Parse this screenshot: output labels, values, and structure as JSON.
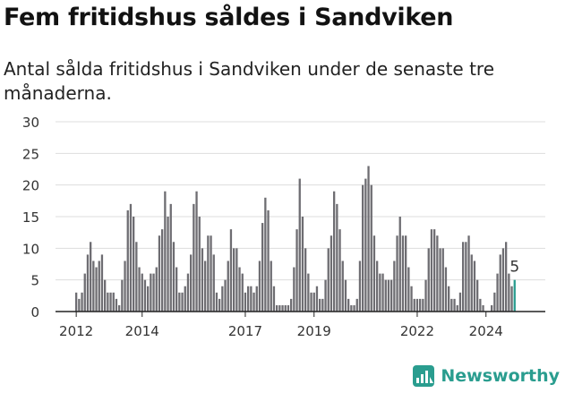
{
  "title": "Fem fritidshus såldes i Sandviken",
  "subtitle": "Antal sålda fritidshus i Sandviken under de senaste tre månaderna.",
  "brand": {
    "name": "Newsworthy",
    "color": "#2a9d8f"
  },
  "colors": {
    "bar": "#6e6d72",
    "highlight": "#2a9d8f",
    "grid": "#dddddd"
  },
  "chart_data": {
    "type": "bar",
    "title": "",
    "xlabel": "",
    "ylabel": "",
    "ylim": [
      0,
      30
    ],
    "grid": true,
    "y_ticks": [
      0,
      5,
      10,
      15,
      20,
      25,
      30
    ],
    "x_ticks": [
      {
        "label": "2012",
        "index": 0
      },
      {
        "label": "2014",
        "index": 23
      },
      {
        "label": "2017",
        "index": 59
      },
      {
        "label": "2019",
        "index": 83
      },
      {
        "label": "2022",
        "index": 119
      },
      {
        "label": "2024",
        "index": 143
      }
    ],
    "values": [
      3,
      2,
      3,
      6,
      9,
      11,
      8,
      7,
      8,
      9,
      5,
      3,
      3,
      3,
      2,
      1,
      5,
      8,
      16,
      17,
      15,
      11,
      7,
      6,
      5,
      4,
      6,
      6,
      7,
      12,
      13,
      19,
      15,
      17,
      11,
      7,
      3,
      3,
      4,
      6,
      9,
      17,
      19,
      15,
      10,
      8,
      12,
      12,
      9,
      3,
      2,
      4,
      5,
      8,
      13,
      10,
      10,
      7,
      6,
      3,
      4,
      4,
      3,
      4,
      8,
      14,
      18,
      16,
      8,
      4,
      1,
      1,
      1,
      1,
      1,
      2,
      7,
      13,
      21,
      15,
      10,
      6,
      3,
      3,
      4,
      2,
      2,
      5,
      10,
      12,
      19,
      17,
      13,
      8,
      5,
      2,
      1,
      1,
      2,
      8,
      20,
      21,
      23,
      20,
      12,
      8,
      6,
      6,
      5,
      5,
      5,
      8,
      12,
      15,
      12,
      12,
      7,
      4,
      2,
      2,
      2,
      2,
      5,
      10,
      13,
      13,
      12,
      10,
      10,
      7,
      4,
      2,
      2,
      1,
      3,
      11,
      11,
      12,
      9,
      8,
      5,
      2,
      1,
      0,
      0,
      1,
      3,
      6,
      9,
      10,
      11,
      6,
      4,
      5
    ],
    "highlight_index": 153,
    "highlight_label": "5"
  }
}
